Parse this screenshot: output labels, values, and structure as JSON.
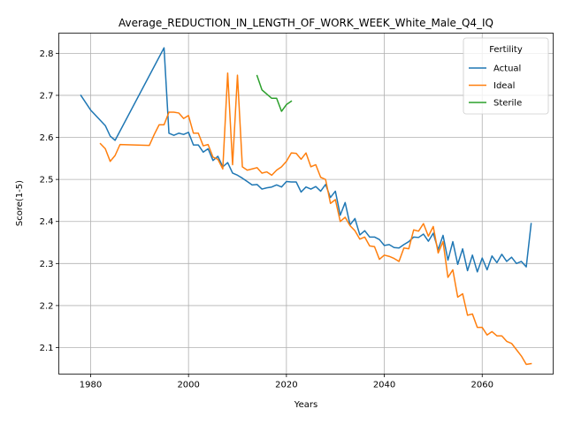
{
  "chart_data": {
    "type": "line",
    "title": "Average_REDUCTION_IN_LENGTH_OF_WORK_WEEK_White_Male_Q4_IQ",
    "xlabel": "Years",
    "ylabel": "Score(1-5)",
    "xlim": [
      1973.5,
      2074.5
    ],
    "ylim": [
      2.037,
      2.848
    ],
    "xticks": [
      1980,
      2000,
      2020,
      2040,
      2060
    ],
    "yticks": [
      2.1,
      2.2,
      2.3,
      2.4,
      2.5,
      2.6,
      2.7,
      2.8
    ],
    "grid": true,
    "legend": {
      "title": "Fertility",
      "position": "top-right"
    },
    "series": [
      {
        "name": "Actual",
        "color": "#1f77b4",
        "x": [
          1978,
          1980,
          1983,
          1984,
          1985,
          1995,
          1996,
          1997,
          1998,
          1999,
          2000,
          2001,
          2002,
          2003,
          2004,
          2005,
          2006,
          2007,
          2008,
          2009,
          2010,
          2011,
          2012,
          2013,
          2014,
          2015,
          2016,
          2017,
          2018,
          2019,
          2020,
          2021,
          2022,
          2023,
          2024,
          2025,
          2026,
          2027,
          2028,
          2029,
          2030,
          2031,
          2032,
          2033,
          2034,
          2035,
          2036,
          2037,
          2038,
          2039,
          2040,
          2041,
          2042,
          2043,
          2044,
          2045,
          2046,
          2047,
          2048,
          2049,
          2050,
          2051,
          2052,
          2053,
          2054,
          2055,
          2056,
          2057,
          2058,
          2059,
          2060,
          2061,
          2062,
          2063,
          2064,
          2065,
          2066,
          2067,
          2068,
          2069,
          2070
        ],
        "y": [
          2.7,
          2.665,
          2.628,
          2.603,
          2.593,
          2.813,
          2.61,
          2.605,
          2.61,
          2.607,
          2.612,
          2.582,
          2.582,
          2.565,
          2.573,
          2.545,
          2.555,
          2.53,
          2.54,
          2.515,
          2.51,
          2.503,
          2.495,
          2.487,
          2.488,
          2.477,
          2.48,
          2.482,
          2.487,
          2.482,
          2.495,
          2.494,
          2.494,
          2.47,
          2.482,
          2.477,
          2.483,
          2.472,
          2.488,
          2.457,
          2.472,
          2.415,
          2.445,
          2.392,
          2.407,
          2.368,
          2.378,
          2.363,
          2.363,
          2.357,
          2.343,
          2.345,
          2.338,
          2.337,
          2.345,
          2.352,
          2.363,
          2.362,
          2.37,
          2.353,
          2.372,
          2.333,
          2.367,
          2.308,
          2.352,
          2.298,
          2.335,
          2.283,
          2.32,
          2.28,
          2.313,
          2.285,
          2.318,
          2.302,
          2.322,
          2.305,
          2.315,
          2.3,
          2.305,
          2.292,
          2.395
        ]
      },
      {
        "name": "Ideal",
        "color": "#ff7f0e",
        "x": [
          1982,
          1983,
          1984,
          1985,
          1986,
          1992,
          1993,
          1994,
          1995,
          1996,
          1997,
          1998,
          1999,
          2000,
          2001,
          2002,
          2003,
          2004,
          2005,
          2006,
          2007,
          2008,
          2009,
          2010,
          2011,
          2012,
          2013,
          2014,
          2015,
          2016,
          2017,
          2018,
          2019,
          2020,
          2021,
          2022,
          2023,
          2024,
          2025,
          2026,
          2027,
          2028,
          2029,
          2030,
          2031,
          2032,
          2033,
          2034,
          2035,
          2036,
          2037,
          2038,
          2039,
          2040,
          2041,
          2042,
          2043,
          2044,
          2045,
          2046,
          2047,
          2048,
          2049,
          2050,
          2051,
          2052,
          2053,
          2054,
          2055,
          2056,
          2057,
          2058,
          2059,
          2060,
          2061,
          2062,
          2063,
          2064,
          2065,
          2066,
          2067,
          2068,
          2069,
          2070
        ],
        "y": [
          2.585,
          2.573,
          2.543,
          2.557,
          2.583,
          2.581,
          2.607,
          2.63,
          2.63,
          2.66,
          2.66,
          2.658,
          2.645,
          2.652,
          2.61,
          2.61,
          2.58,
          2.583,
          2.553,
          2.548,
          2.525,
          2.753,
          2.535,
          2.748,
          2.53,
          2.522,
          2.525,
          2.528,
          2.515,
          2.518,
          2.51,
          2.522,
          2.53,
          2.543,
          2.563,
          2.562,
          2.548,
          2.563,
          2.53,
          2.535,
          2.505,
          2.5,
          2.443,
          2.452,
          2.4,
          2.41,
          2.39,
          2.378,
          2.358,
          2.363,
          2.342,
          2.34,
          2.31,
          2.32,
          2.317,
          2.312,
          2.305,
          2.337,
          2.335,
          2.38,
          2.377,
          2.395,
          2.365,
          2.388,
          2.325,
          2.352,
          2.267,
          2.285,
          2.22,
          2.228,
          2.177,
          2.18,
          2.148,
          2.148,
          2.13,
          2.138,
          2.128,
          2.128,
          2.115,
          2.11,
          2.095,
          2.08,
          2.06,
          2.062
        ]
      },
      {
        "name": "Sterile",
        "color": "#2ca02c",
        "x": [
          2014,
          2015,
          2016,
          2017,
          2018,
          2019,
          2020,
          2021
        ],
        "y": [
          2.747,
          2.713,
          2.703,
          2.693,
          2.693,
          2.662,
          2.678,
          2.686
        ]
      }
    ]
  }
}
